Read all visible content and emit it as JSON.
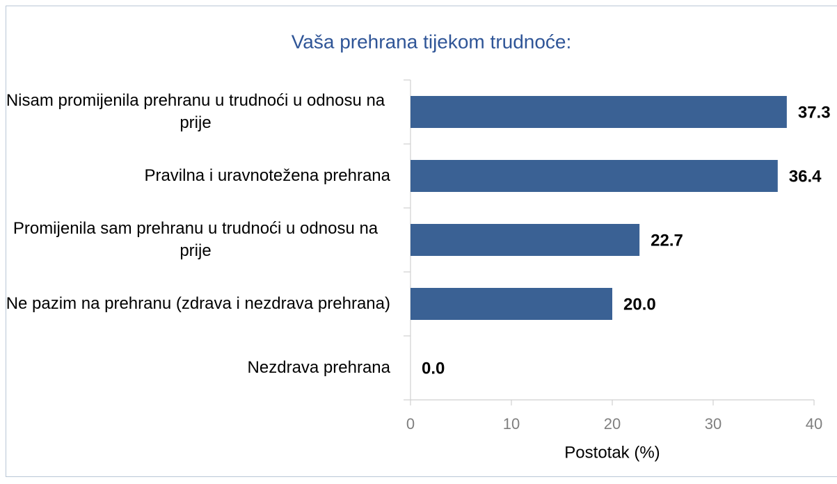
{
  "chart_data": {
    "type": "bar",
    "orientation": "horizontal",
    "title": "Vaša prehrana tijekom trudnoće:",
    "x_label": "Postotak (%)",
    "categories": [
      "Nisam promijenila prehranu u trudnoći u odnosu na prije",
      "Pravilna i uravnotežena prehrana",
      "Promijenila sam prehranu u trudnoći u odnosu na prije",
      "Ne pazim na prehranu (zdrava i nezdrava prehrana)",
      "Nezdrava prehrana"
    ],
    "values": [
      37.3,
      36.4,
      22.7,
      20.0,
      0.0
    ],
    "value_labels": [
      "37.3",
      "36.4",
      "22.7",
      "20.0",
      "0.0"
    ],
    "color": "#3a6194",
    "xlim": [
      0,
      40
    ],
    "xticks": [
      0,
      10,
      20,
      30,
      40
    ],
    "grid": false
  }
}
